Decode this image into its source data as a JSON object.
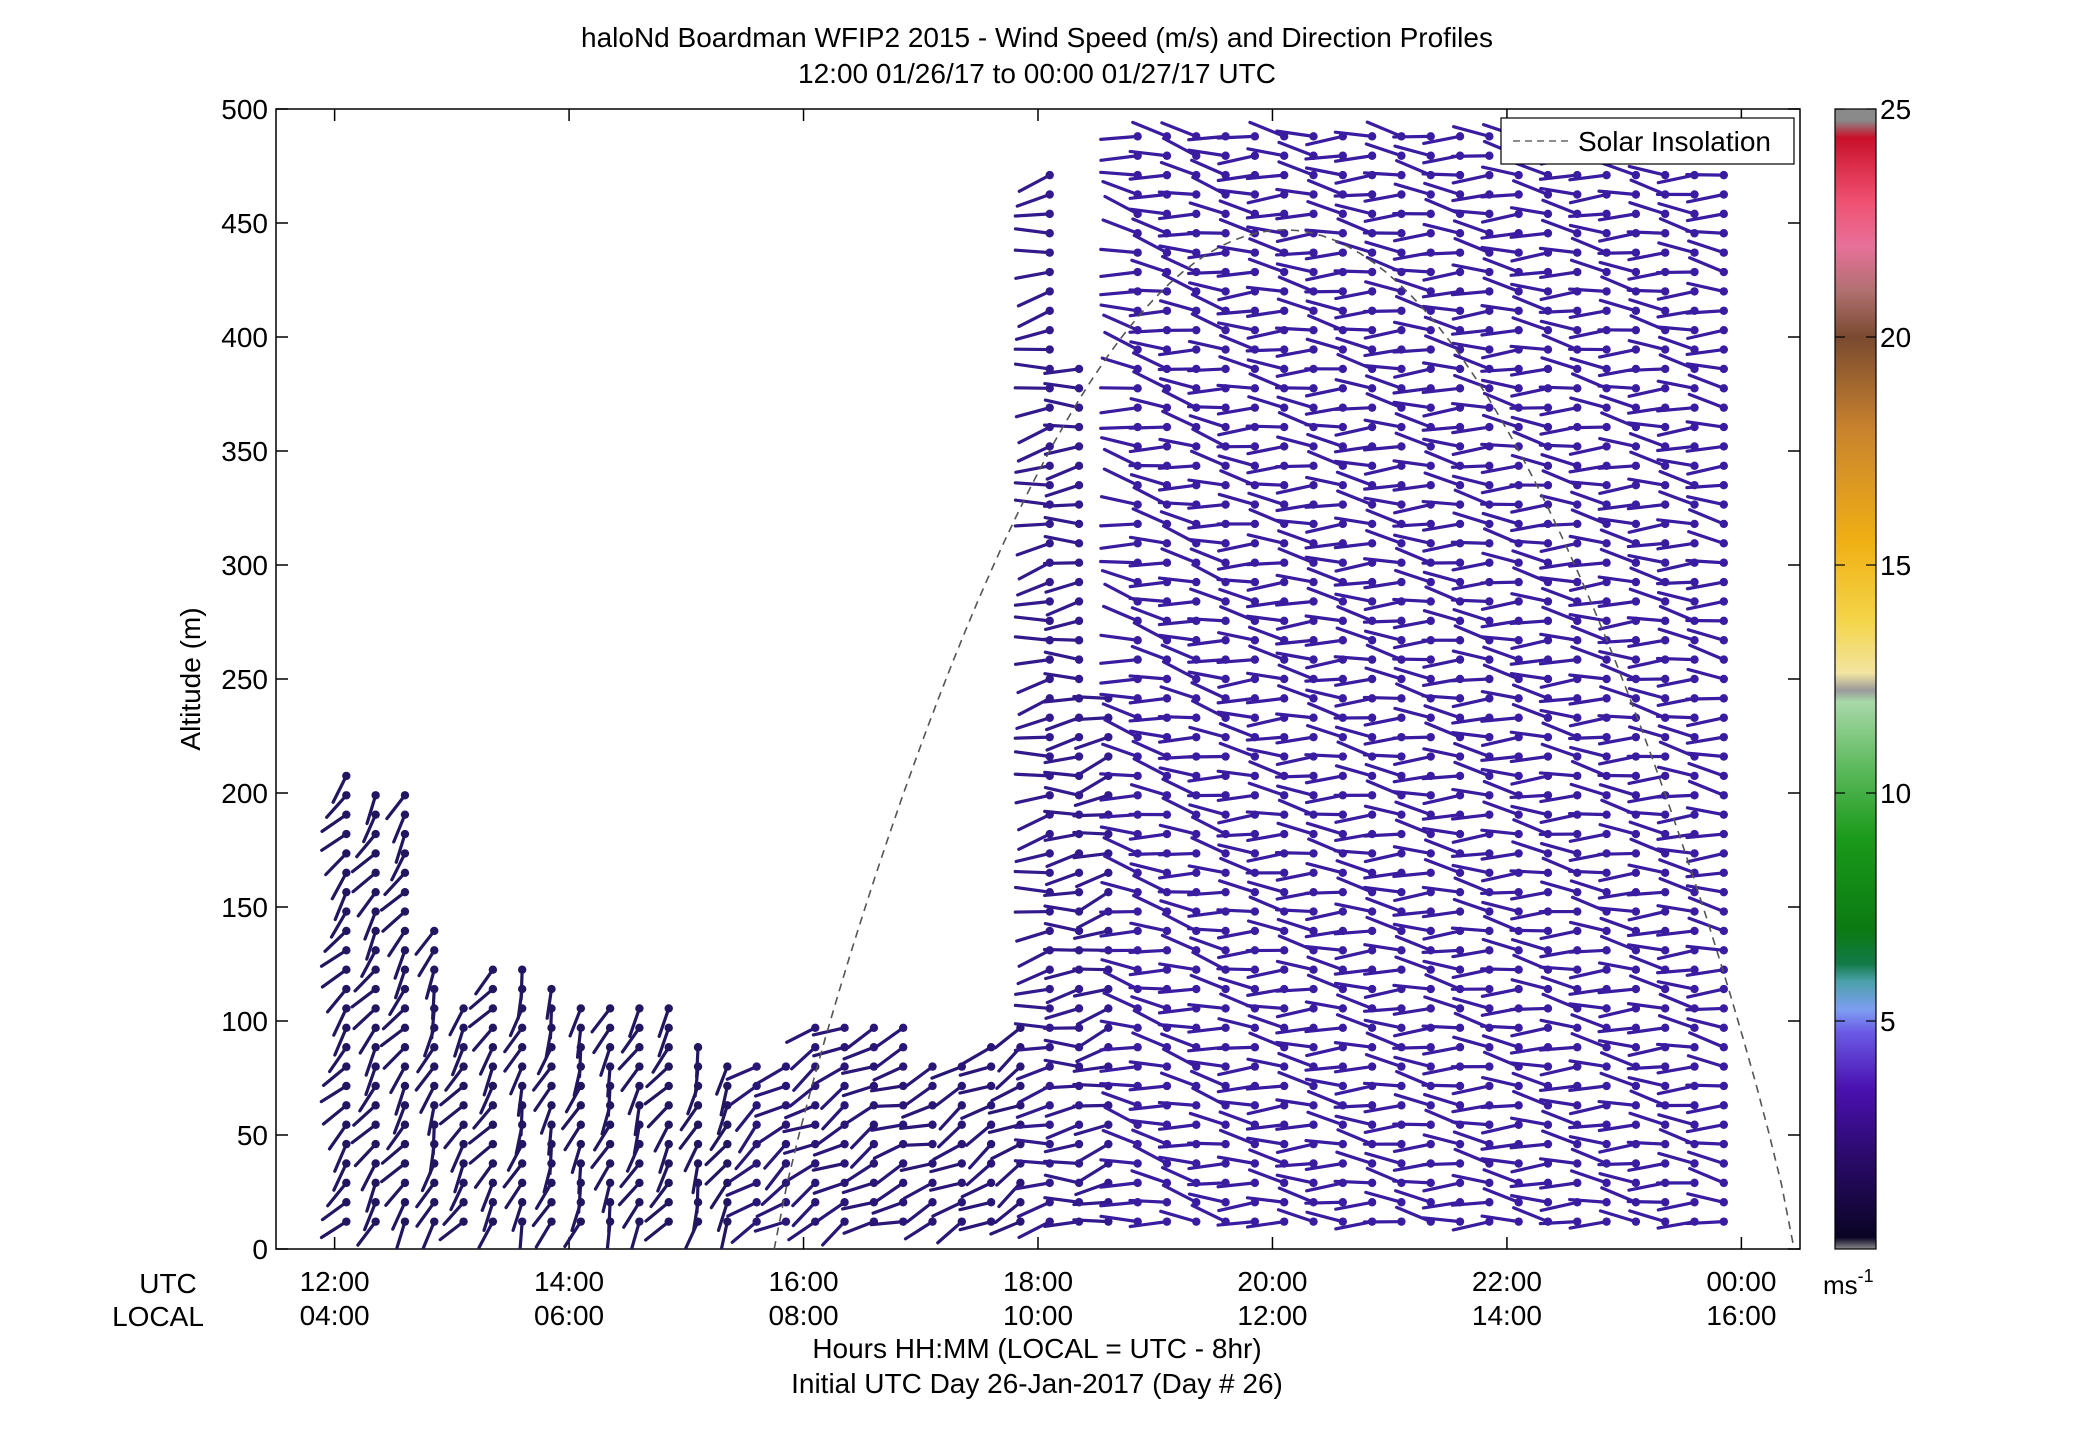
{
  "chart_data": {
    "type": "wind-barb-profile",
    "title": "haloNd Boardman WFIP2 2015 - Wind Speed (m/s) and Direction Profiles",
    "subtitle": "12:00 01/26/17 to 00:00 01/27/17  UTC",
    "ylabel": "Altitude (m)",
    "xlabel": "Hours HH:MM  (LOCAL = UTC - 8hr)",
    "xlabel2": "Initial UTC Day 26-Jan-2017 (Day # 26)",
    "utc_row_label": "UTC",
    "local_row_label": "LOCAL",
    "xlim_hours": [
      11.5,
      24.5
    ],
    "ylim": [
      0,
      500
    ],
    "x_ticks": [
      {
        "hour": 12,
        "utc": "12:00",
        "local": "04:00"
      },
      {
        "hour": 14,
        "utc": "14:00",
        "local": "06:00"
      },
      {
        "hour": 16,
        "utc": "16:00",
        "local": "08:00"
      },
      {
        "hour": 18,
        "utc": "18:00",
        "local": "10:00"
      },
      {
        "hour": 20,
        "utc": "20:00",
        "local": "12:00"
      },
      {
        "hour": 22,
        "utc": "22:00",
        "local": "14:00"
      },
      {
        "hour": 24,
        "utc": "00:00",
        "local": "16:00"
      }
    ],
    "y_ticks": [
      "0",
      "50",
      "100",
      "150",
      "200",
      "250",
      "300",
      "350",
      "400",
      "450",
      "500"
    ],
    "legend": {
      "label": "Solar Insolation",
      "placement": "top-right"
    },
    "colorbar": {
      "range": [
        0,
        25
      ],
      "ticks": [
        "5",
        "10",
        "15",
        "20",
        "25"
      ],
      "unit": "ms",
      "unit_exponent": "-1"
    },
    "solar_insolation_curve": {
      "start_hour": 15.75,
      "peak_hour": 20.05,
      "peak_altitude": 447,
      "end_hour": 24.45
    },
    "profiles": [
      {
        "t": 12.1,
        "top": 215,
        "dir": 220,
        "spd": 1.5
      },
      {
        "t": 12.35,
        "top": 205,
        "dir": 215,
        "spd": 1.5
      },
      {
        "t": 12.6,
        "top": 205,
        "dir": 215,
        "spd": 1.5
      },
      {
        "t": 12.85,
        "top": 140,
        "dir": 200,
        "spd": 1.5
      },
      {
        "t": 13.1,
        "top": 110,
        "dir": 215,
        "spd": 1.5
      },
      {
        "t": 13.35,
        "top": 130,
        "dir": 215,
        "spd": 1.5
      },
      {
        "t": 13.6,
        "top": 125,
        "dir": 200,
        "spd": 1.5
      },
      {
        "t": 13.85,
        "top": 115,
        "dir": 200,
        "spd": 1.5
      },
      {
        "t": 14.1,
        "top": 112,
        "dir": 200,
        "spd": 1.5
      },
      {
        "t": 14.35,
        "top": 112,
        "dir": 200,
        "spd": 1.5
      },
      {
        "t": 14.6,
        "top": 112,
        "dir": 205,
        "spd": 1.5
      },
      {
        "t": 14.85,
        "top": 110,
        "dir": 215,
        "spd": 1.5
      },
      {
        "t": 15.1,
        "top": 95,
        "dir": 200,
        "spd": 1.5
      },
      {
        "t": 15.35,
        "top": 88,
        "dir": 210,
        "spd": 1.5
      },
      {
        "t": 15.6,
        "top": 80,
        "dir": 230,
        "spd": 2
      },
      {
        "t": 15.85,
        "top": 85,
        "dir": 235,
        "spd": 2
      },
      {
        "t": 16.1,
        "top": 98,
        "dir": 240,
        "spd": 2
      },
      {
        "t": 16.35,
        "top": 100,
        "dir": 240,
        "spd": 2
      },
      {
        "t": 16.6,
        "top": 98,
        "dir": 240,
        "spd": 2
      },
      {
        "t": 16.85,
        "top": 97,
        "dir": 250,
        "spd": 2
      },
      {
        "t": 17.1,
        "top": 80,
        "dir": 250,
        "spd": 2
      },
      {
        "t": 17.35,
        "top": 85,
        "dir": 240,
        "spd": 2
      },
      {
        "t": 17.6,
        "top": 95,
        "dir": 240,
        "spd": 2
      },
      {
        "t": 17.85,
        "top": 102,
        "dir": 240,
        "spd": 2
      },
      {
        "t": 18.1,
        "top": 478,
        "dir": 260,
        "spd": 2.5
      },
      {
        "t": 18.35,
        "top": 388,
        "dir": 265,
        "spd": 2.5
      },
      {
        "t": 18.6,
        "top": 245,
        "dir": 255,
        "spd": 2.5
      },
      {
        "t": 18.85,
        "top": 495,
        "dir": 280,
        "spd": 3
      },
      {
        "t": 19.1,
        "top": 495,
        "dir": 280,
        "spd": 3
      },
      {
        "t": 19.35,
        "top": 495,
        "dir": 280,
        "spd": 3
      },
      {
        "t": 19.6,
        "top": 495,
        "dir": 280,
        "spd": 3
      },
      {
        "t": 19.85,
        "top": 490,
        "dir": 275,
        "spd": 3
      },
      {
        "t": 20.1,
        "top": 490,
        "dir": 275,
        "spd": 3
      },
      {
        "t": 20.35,
        "top": 490,
        "dir": 275,
        "spd": 3
      },
      {
        "t": 20.6,
        "top": 490,
        "dir": 275,
        "spd": 3
      },
      {
        "t": 20.85,
        "top": 490,
        "dir": 275,
        "spd": 3
      },
      {
        "t": 21.1,
        "top": 490,
        "dir": 275,
        "spd": 3
      },
      {
        "t": 21.35,
        "top": 490,
        "dir": 275,
        "spd": 3
      },
      {
        "t": 21.6,
        "top": 490,
        "dir": 275,
        "spd": 3
      },
      {
        "t": 21.85,
        "top": 490,
        "dir": 275,
        "spd": 3
      },
      {
        "t": 22.1,
        "top": 490,
        "dir": 275,
        "spd": 3
      },
      {
        "t": 22.35,
        "top": 490,
        "dir": 275,
        "spd": 3
      },
      {
        "t": 22.6,
        "top": 490,
        "dir": 275,
        "spd": 3
      },
      {
        "t": 22.85,
        "top": 490,
        "dir": 275,
        "spd": 3
      },
      {
        "t": 23.1,
        "top": 490,
        "dir": 275,
        "spd": 3
      },
      {
        "t": 23.35,
        "top": 490,
        "dir": 275,
        "spd": 3
      },
      {
        "t": 23.6,
        "top": 490,
        "dir": 275,
        "spd": 3
      },
      {
        "t": 23.85,
        "top": 490,
        "dir": 275,
        "spd": 3
      }
    ]
  }
}
